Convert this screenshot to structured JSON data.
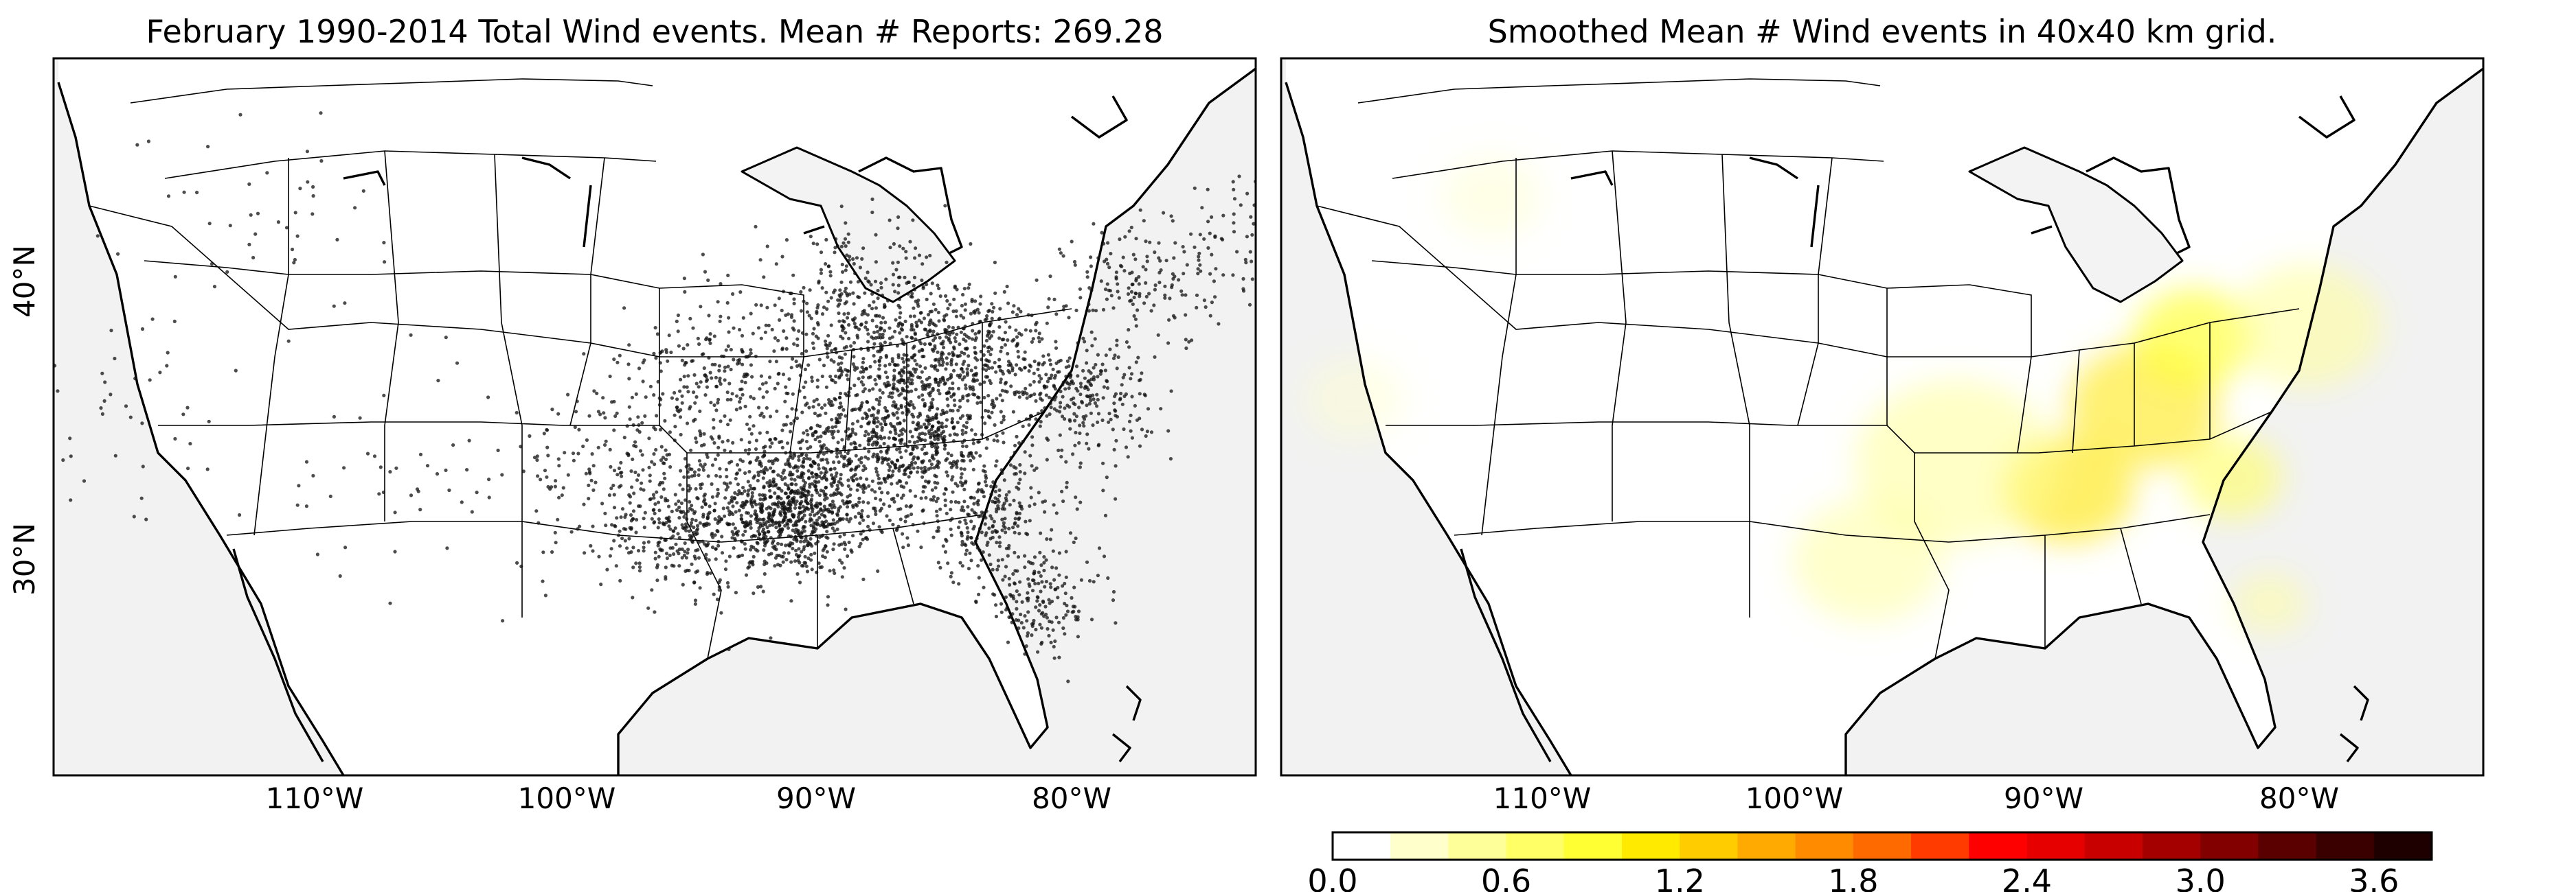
{
  "left_panel": {
    "title": "February 1990-2014 Total Wind events. Mean # Reports: 269.28",
    "lat_labels": [
      "40°N",
      "30°N"
    ],
    "lon_labels": [
      "110°W",
      "100°W",
      "90°W",
      "80°W"
    ]
  },
  "right_panel": {
    "title": "Smoothed Mean # Wind events in 40x40 km grid.",
    "lon_labels": [
      "110°W",
      "100°W",
      "90°W",
      "80°W"
    ]
  },
  "colorbar": {
    "tick_labels": [
      "0.0",
      "0.6",
      "1.2",
      "1.8",
      "2.4",
      "3.0",
      "3.6"
    ],
    "colors": [
      "#ffffff",
      "#ffffcc",
      "#ffff99",
      "#ffff66",
      "#ffff33",
      "#ffea00",
      "#ffcc00",
      "#ffaa00",
      "#ff8c00",
      "#ff6a00",
      "#ff3b00",
      "#ff0000",
      "#e60000",
      "#c80000",
      "#a50000",
      "#820000",
      "#5a0000",
      "#3a0000",
      "#1e0000"
    ]
  },
  "chart_data": [
    {
      "type": "scatter",
      "title": "February 1990-2014 Total Wind events. Mean # Reports: 269.28",
      "xlabel": "",
      "ylabel": "",
      "xlim": [
        -120,
        -73
      ],
      "ylim": [
        24,
        48
      ],
      "x_ticks": [
        "110°W",
        "100°W",
        "90°W",
        "80°W"
      ],
      "y_ticks": [
        "40°N",
        "30°N"
      ],
      "series": [
        {
          "clusters": [
            {
              "lon": -91.0,
              "lat": 31.8,
              "spread": 1.6,
              "n": 900
            },
            {
              "lon": -86.5,
              "lat": 34.5,
              "spread": 2.0,
              "n": 800
            },
            {
              "lon": -84.0,
              "lat": 37.5,
              "spread": 1.8,
              "n": 450
            },
            {
              "lon": -95.5,
              "lat": 31.0,
              "spread": 1.5,
              "n": 250
            },
            {
              "lon": -83.0,
              "lat": 31.5,
              "spread": 1.5,
              "n": 260
            },
            {
              "lon": -81.0,
              "lat": 28.5,
              "spread": 1.2,
              "n": 160
            },
            {
              "lon": -88.5,
              "lat": 38.5,
              "spread": 2.0,
              "n": 420
            },
            {
              "lon": -79.5,
              "lat": 36.0,
              "spread": 1.4,
              "n": 260
            },
            {
              "lon": -77.0,
              "lat": 40.0,
              "spread": 1.5,
              "n": 150
            },
            {
              "lon": -94.0,
              "lat": 36.0,
              "spread": 2.0,
              "n": 300
            },
            {
              "lon": -98.0,
              "lat": 33.0,
              "spread": 2.2,
              "n": 180
            },
            {
              "lon": -73.5,
              "lat": 42.0,
              "spread": 1.5,
              "n": 70
            },
            {
              "lon": -112.0,
              "lat": 43.0,
              "spread": 2.5,
              "n": 45
            },
            {
              "lon": -117.5,
              "lat": 36.0,
              "spread": 2.5,
              "n": 45
            },
            {
              "lon": -106.5,
              "lat": 33.5,
              "spread": 2.5,
              "n": 45
            }
          ]
        }
      ]
    },
    {
      "type": "heatmap",
      "title": "Smoothed Mean # Wind events in 40x40 km grid.",
      "xlabel": "",
      "ylabel": "",
      "xlim": [
        -120,
        -73
      ],
      "ylim": [
        24,
        48
      ],
      "colorbar_range": [
        0.0,
        3.8
      ],
      "colorbar_ticks": [
        0.0,
        0.6,
        1.2,
        1.8,
        2.4,
        3.0,
        3.6
      ],
      "hotspots": [
        {
          "lon": -89.0,
          "lat": 32.5,
          "radius": 2.6,
          "value": 0.9
        },
        {
          "lon": -86.0,
          "lat": 35.5,
          "radius": 3.0,
          "value": 0.8
        },
        {
          "lon": -84.0,
          "lat": 38.0,
          "radius": 2.4,
          "value": 0.55
        },
        {
          "lon": -93.5,
          "lat": 33.5,
          "radius": 4.0,
          "value": 0.35
        },
        {
          "lon": -82.5,
          "lat": 33.0,
          "radius": 2.0,
          "value": 0.45
        },
        {
          "lon": -79.5,
          "lat": 38.5,
          "radius": 3.0,
          "value": 0.35
        },
        {
          "lon": -97.0,
          "lat": 30.0,
          "radius": 3.0,
          "value": 0.25
        },
        {
          "lon": -81.0,
          "lat": 28.5,
          "radius": 1.5,
          "value": 0.25
        },
        {
          "lon": -112.0,
          "lat": 43.5,
          "radius": 2.0,
          "value": 0.18
        },
        {
          "lon": -117.5,
          "lat": 36.5,
          "radius": 2.0,
          "value": 0.15
        }
      ]
    }
  ]
}
